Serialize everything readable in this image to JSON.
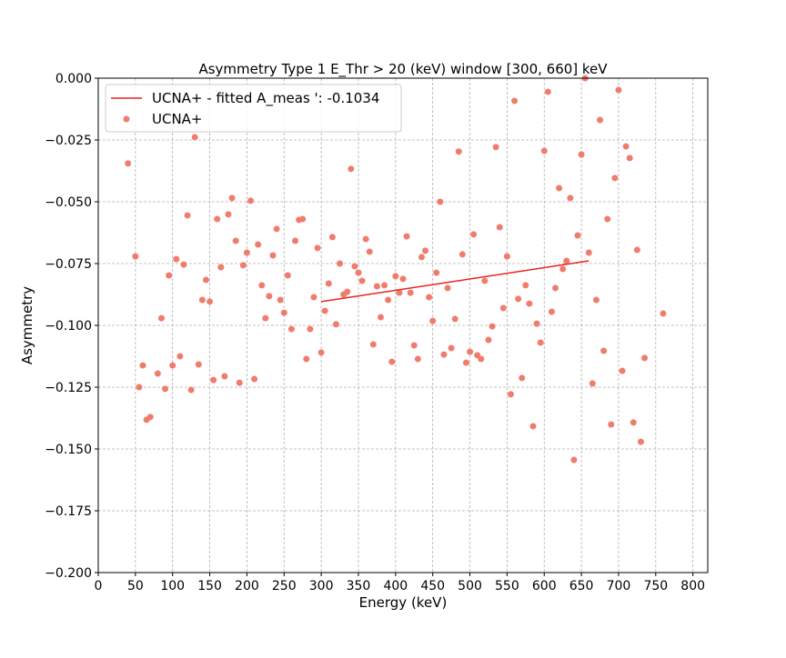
{
  "chart_data": {
    "type": "scatter",
    "title": "Asymmetry Type 1 E_Thr > 20 (keV) window [300, 660] keV",
    "xlabel": "Energy (keV)",
    "ylabel": "Asymmetry",
    "xlim": [
      0,
      820
    ],
    "ylim": [
      -0.2,
      0.0
    ],
    "xticks": [
      0,
      50,
      100,
      150,
      200,
      250,
      300,
      350,
      400,
      450,
      500,
      550,
      600,
      650,
      700,
      750,
      800
    ],
    "yticks": [
      -0.2,
      -0.175,
      -0.15,
      -0.125,
      -0.1,
      -0.075,
      -0.05,
      -0.025,
      0.0
    ],
    "xtick_labels": [
      "0",
      "50",
      "100",
      "150",
      "200",
      "250",
      "300",
      "350",
      "400",
      "450",
      "500",
      "550",
      "600",
      "650",
      "700",
      "750",
      "800"
    ],
    "ytick_labels": [
      "−0.200",
      "−0.175",
      "−0.150",
      "−0.125",
      "−0.100",
      "−0.075",
      "−0.050",
      "−0.025",
      "0.000"
    ],
    "grid": true,
    "legend_position": "upper-left",
    "colors": {
      "points": "#f07c6c",
      "fit": "#e8231e",
      "grid": "#b0b0b0"
    },
    "series": [
      {
        "name": "UCNA+",
        "kind": "scatter",
        "points": [
          [
            40,
            -0.0345
          ],
          [
            50,
            -0.0721
          ],
          [
            55,
            -0.125
          ],
          [
            60,
            -0.1162
          ],
          [
            65,
            -0.1382
          ],
          [
            70,
            -0.1371
          ],
          [
            80,
            -0.1195
          ],
          [
            85,
            -0.0971
          ],
          [
            90,
            -0.1257
          ],
          [
            95,
            -0.0798
          ],
          [
            100,
            -0.1162
          ],
          [
            105,
            -0.0732
          ],
          [
            110,
            -0.1125
          ],
          [
            115,
            -0.0754
          ],
          [
            120,
            -0.0555
          ],
          [
            125,
            -0.1261
          ],
          [
            130,
            -0.0239
          ],
          [
            135,
            -0.1158
          ],
          [
            140,
            -0.0897
          ],
          [
            145,
            -0.0816
          ],
          [
            150,
            -0.0904
          ],
          [
            155,
            -0.1221
          ],
          [
            160,
            -0.057
          ],
          [
            165,
            -0.0765
          ],
          [
            170,
            -0.1206
          ],
          [
            175,
            -0.0551
          ],
          [
            180,
            -0.0485
          ],
          [
            185,
            -0.0658
          ],
          [
            190,
            -0.1232
          ],
          [
            195,
            -0.0757
          ],
          [
            200,
            -0.0706
          ],
          [
            205,
            -0.0496
          ],
          [
            210,
            -0.1217
          ],
          [
            215,
            -0.0673
          ],
          [
            220,
            -0.0838
          ],
          [
            225,
            -0.0971
          ],
          [
            230,
            -0.0882
          ],
          [
            235,
            -0.0717
          ],
          [
            240,
            -0.061
          ],
          [
            245,
            -0.0897
          ],
          [
            250,
            -0.0949
          ],
          [
            255,
            -0.0798
          ],
          [
            260,
            -0.1015
          ],
          [
            265,
            -0.0658
          ],
          [
            270,
            -0.0573
          ],
          [
            275,
            -0.057
          ],
          [
            280,
            -0.1136
          ],
          [
            285,
            -0.1015
          ],
          [
            290,
            -0.0886
          ],
          [
            295,
            -0.0687
          ],
          [
            300,
            -0.111
          ],
          [
            305,
            -0.0941
          ],
          [
            310,
            -0.0831
          ],
          [
            315,
            -0.0643
          ],
          [
            320,
            -0.0996
          ],
          [
            325,
            -0.075
          ],
          [
            330,
            -0.0875
          ],
          [
            335,
            -0.0864
          ],
          [
            340,
            -0.0367
          ],
          [
            345,
            -0.0761
          ],
          [
            350,
            -0.0787
          ],
          [
            355,
            -0.082
          ],
          [
            360,
            -0.0651
          ],
          [
            365,
            -0.0702
          ],
          [
            370,
            -0.1077
          ],
          [
            375,
            -0.0842
          ],
          [
            380,
            -0.0967
          ],
          [
            385,
            -0.0838
          ],
          [
            390,
            -0.0897
          ],
          [
            395,
            -0.1147
          ],
          [
            400,
            -0.0801
          ],
          [
            405,
            -0.0868
          ],
          [
            410,
            -0.0812
          ],
          [
            415,
            -0.064
          ],
          [
            420,
            -0.0868
          ],
          [
            425,
            -0.1081
          ],
          [
            430,
            -0.1136
          ],
          [
            435,
            -0.0724
          ],
          [
            440,
            -0.0698
          ],
          [
            445,
            -0.0886
          ],
          [
            450,
            -0.0982
          ],
          [
            455,
            -0.0787
          ],
          [
            460,
            -0.05
          ],
          [
            465,
            -0.1118
          ],
          [
            470,
            -0.0849
          ],
          [
            475,
            -0.1092
          ],
          [
            480,
            -0.0974
          ],
          [
            485,
            -0.0297
          ],
          [
            490,
            -0.0713
          ],
          [
            495,
            -0.1151
          ],
          [
            500,
            -0.1107
          ],
          [
            505,
            -0.0632
          ],
          [
            510,
            -0.1121
          ],
          [
            515,
            -0.1136
          ],
          [
            520,
            -0.082
          ],
          [
            525,
            -0.1059
          ],
          [
            530,
            -0.1004
          ],
          [
            535,
            -0.0279
          ],
          [
            540,
            -0.0603
          ],
          [
            545,
            -0.093
          ],
          [
            550,
            -0.0721
          ],
          [
            555,
            -0.1279
          ],
          [
            560,
            -0.0092
          ],
          [
            565,
            -0.0893
          ],
          [
            570,
            -0.1213
          ],
          [
            575,
            -0.0838
          ],
          [
            580,
            -0.0912
          ],
          [
            585,
            -0.1408
          ],
          [
            590,
            -0.0993
          ],
          [
            595,
            -0.107
          ],
          [
            600,
            -0.0294
          ],
          [
            605,
            -0.0055
          ],
          [
            610,
            -0.0945
          ],
          [
            615,
            -0.0849
          ],
          [
            620,
            -0.0445
          ],
          [
            625,
            -0.0772
          ],
          [
            630,
            -0.0739
          ],
          [
            635,
            -0.0485
          ],
          [
            640,
            -0.1544
          ],
          [
            645,
            -0.0636
          ],
          [
            650,
            -0.0309
          ],
          [
            655,
            0.0
          ],
          [
            660,
            -0.0706
          ],
          [
            665,
            -0.1235
          ],
          [
            670,
            -0.0897
          ],
          [
            675,
            -0.0169
          ],
          [
            680,
            -0.1103
          ],
          [
            685,
            -0.057
          ],
          [
            690,
            -0.1401
          ],
          [
            695,
            -0.0404
          ],
          [
            700,
            -0.0048
          ],
          [
            705,
            -0.1184
          ],
          [
            710,
            -0.0276
          ],
          [
            715,
            -0.0323
          ],
          [
            720,
            -0.1393
          ],
          [
            725,
            -0.0695
          ],
          [
            730,
            -0.1471
          ],
          [
            735,
            -0.1132
          ],
          [
            760,
            -0.0952
          ]
        ]
      },
      {
        "name": "UCNA+ - fitted A_meas ': -0.1034",
        "kind": "line",
        "points": [
          [
            300,
            -0.0904
          ],
          [
            660,
            -0.0739
          ]
        ]
      }
    ]
  }
}
